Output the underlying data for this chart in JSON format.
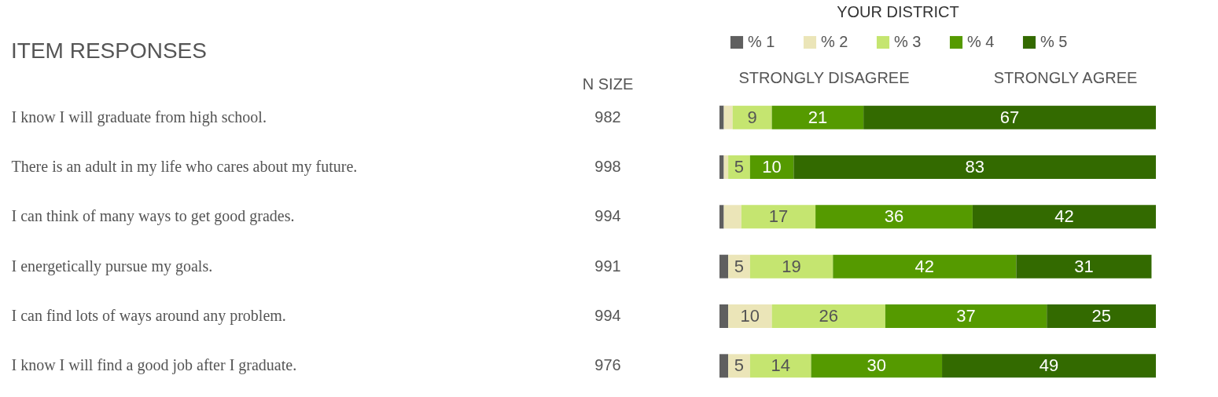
{
  "chart_data": {
    "type": "bar",
    "orientation": "horizontal",
    "stacked": true,
    "title": "ITEM RESPONSES",
    "legend_title": "YOUR DISTRICT",
    "legend": "top",
    "tick_labels": "y",
    "xlim": [
      0,
      100
    ],
    "categories": [
      "I know I will graduate from high school.",
      "There is an adult in my life who cares about my future.",
      "I can think of many ways to get good grades.",
      "I energetically pursue my goals.",
      "I can find lots of ways around any problem.",
      "I know I will find a good job after I graduate."
    ],
    "series": [
      {
        "name": "% 1",
        "color": "#5f5f5f",
        "values": [
          1,
          1,
          1,
          2,
          2,
          2
        ],
        "value_labels": [
          null,
          null,
          null,
          null,
          null,
          null
        ]
      },
      {
        "name": "% 2",
        "color": "#ebe5b8",
        "values": [
          2,
          1,
          4,
          5,
          10,
          5
        ],
        "value_labels": [
          null,
          null,
          null,
          "5",
          "10",
          "5"
        ]
      },
      {
        "name": "% 3",
        "color": "#c5e570",
        "values": [
          9,
          5,
          17,
          19,
          26,
          14
        ],
        "value_labels": [
          "9",
          "5",
          "17",
          "19",
          "26",
          "14"
        ]
      },
      {
        "name": "% 4",
        "color": "#559a00",
        "values": [
          21,
          10,
          36,
          42,
          37,
          30
        ],
        "value_labels": [
          "21",
          "10",
          "36",
          "42",
          "37",
          "30"
        ]
      },
      {
        "name": "% 5",
        "color": "#336a00",
        "values": [
          67,
          83,
          42,
          31,
          25,
          49
        ],
        "value_labels": [
          "67",
          "83",
          "42",
          "31",
          "25",
          "49"
        ]
      }
    ],
    "annotations": [
      "N SIZE",
      "982",
      "998",
      "994",
      "991",
      "994",
      "976",
      "STRONGLY DISAGREE",
      "STRONGLY AGREE"
    ]
  }
}
